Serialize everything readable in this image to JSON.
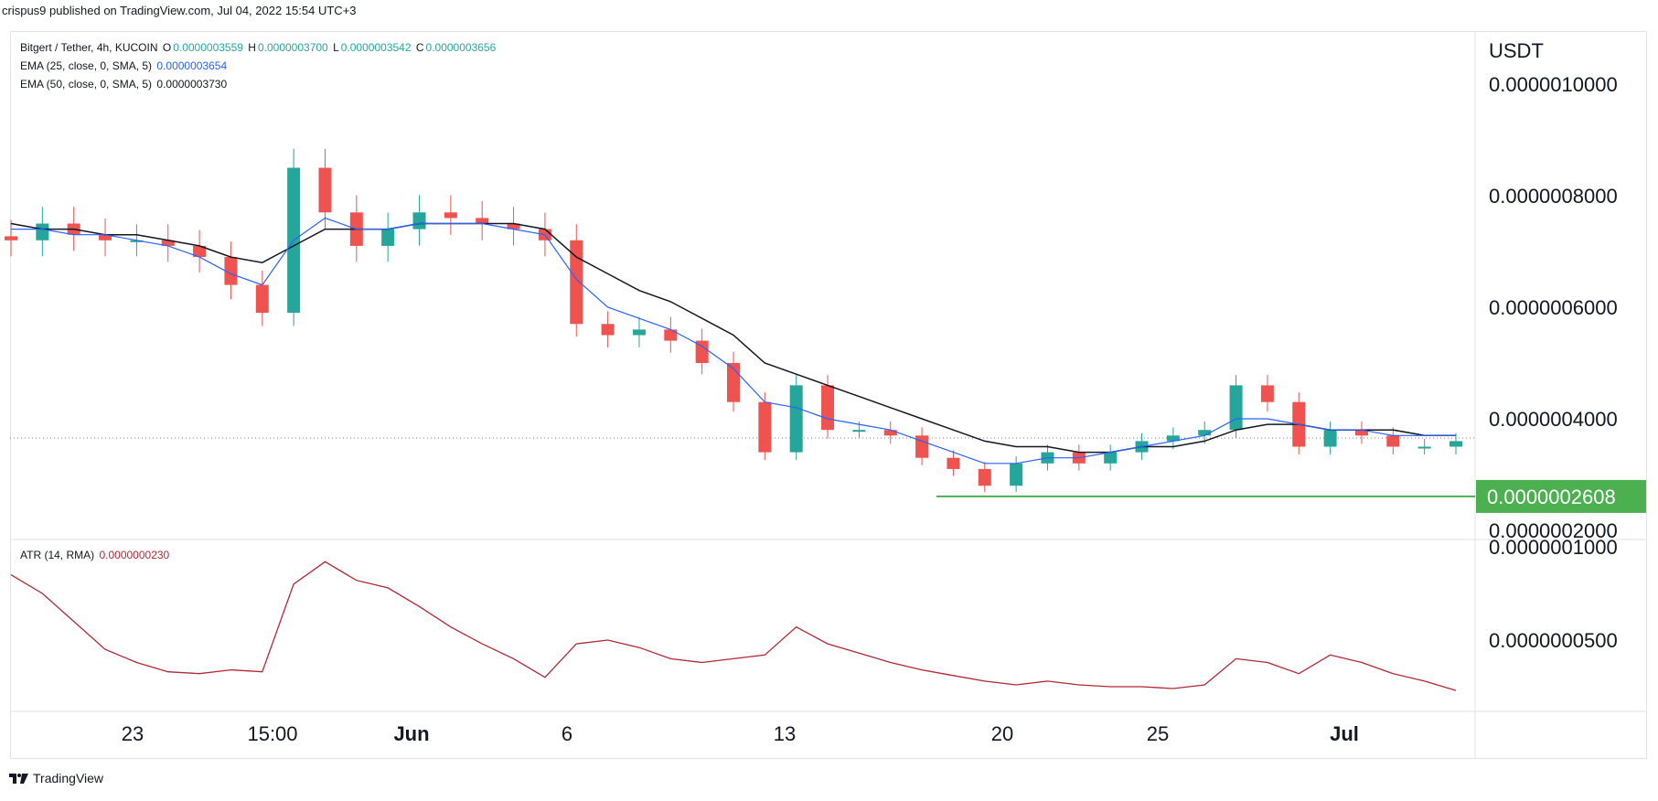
{
  "header": {
    "author": "crispus9",
    "published_text": "published on TradingView.com, Jul 04, 2022 15:54 UTC+3"
  },
  "legend": {
    "symbol": "Bitgert / Tether, 4h, KUCOIN",
    "o_label": "O",
    "o_value": "0.0000003559",
    "h_label": "H",
    "h_value": "0.0000003700",
    "l_label": "L",
    "l_value": "0.0000003542",
    "c_label": "C",
    "c_value": "0.0000003656",
    "ema25_label": "EMA (25, close, 0, SMA, 5)",
    "ema25_value": "0.0000003654",
    "ema50_label": "EMA (50, close, 0, SMA, 5)",
    "ema50_value": "0.0000003730",
    "atr_label": "ATR (14, RMA)",
    "atr_value": "0.0000000230"
  },
  "footer": {
    "brand": "TradingView"
  },
  "colors": {
    "up": "#26a69a",
    "down": "#ef5350",
    "ema25": "#2962ff",
    "ema50": "#131722",
    "atr": "#b22833",
    "support": "#4caf50",
    "grid": "#e0e3eb",
    "price_line": "#26a69a"
  },
  "chart_data": {
    "type": "candlestick",
    "symbol": "Bitgert / Tether",
    "interval": "4h",
    "exchange": "KUCOIN",
    "y_unit": "USDT",
    "price_ticks": [
      "0.0000010000",
      "0.0000008000",
      "0.0000006000",
      "0.0000004000",
      "0.0000002000"
    ],
    "atr_ticks": [
      "0.0000001000",
      "0.0000000500"
    ],
    "x_ticks": [
      "23",
      "15:00",
      "Jun",
      "6",
      "13",
      "20",
      "25",
      "Jul"
    ],
    "x_tick_dates": [
      "2022-05-23",
      "2022-05-29 15:00",
      "2022-06-01",
      "2022-06-06",
      "2022-06-13",
      "2022-06-20",
      "2022-06-25",
      "2022-07-01"
    ],
    "support_level": 2.608e-07,
    "support_label": "0.0000002608",
    "last_close": 3.656e-07,
    "x": [
      "2022-05-19",
      "2022-05-20",
      "2022-05-21",
      "2022-05-22",
      "2022-05-23",
      "2022-05-24",
      "2022-05-25",
      "2022-05-26",
      "2022-05-27",
      "2022-05-28",
      "2022-05-29",
      "2022-05-30",
      "2022-05-31",
      "2022-06-01",
      "2022-06-02",
      "2022-06-03",
      "2022-06-04",
      "2022-06-05",
      "2022-06-06",
      "2022-06-07",
      "2022-06-08",
      "2022-06-09",
      "2022-06-10",
      "2022-06-11",
      "2022-06-12",
      "2022-06-13",
      "2022-06-14",
      "2022-06-15",
      "2022-06-16",
      "2022-06-17",
      "2022-06-18",
      "2022-06-19",
      "2022-06-20",
      "2022-06-21",
      "2022-06-22",
      "2022-06-23",
      "2022-06-24",
      "2022-06-25",
      "2022-06-26",
      "2022-06-27",
      "2022-06-28",
      "2022-06-29",
      "2022-06-30",
      "2022-07-01",
      "2022-07-02",
      "2022-07-03",
      "2022-07-04"
    ],
    "close": [
      7.2e-07,
      7.5e-07,
      7.3e-07,
      7.2e-07,
      7.2e-07,
      7.1e-07,
      6.9e-07,
      6.4e-07,
      5.9e-07,
      8.5e-07,
      7.7e-07,
      7.1e-07,
      7.4e-07,
      7.7e-07,
      7.6e-07,
      7.5e-07,
      7.4e-07,
      7.2e-07,
      5.7e-07,
      5.5e-07,
      5.6e-07,
      5.4e-07,
      5e-07,
      4.3e-07,
      3.4e-07,
      4.6e-07,
      3.8e-07,
      3.8e-07,
      3.7e-07,
      3.3e-07,
      3.1e-07,
      2.8e-07,
      3.2e-07,
      3.4e-07,
      3.2e-07,
      3.4e-07,
      3.6e-07,
      3.7e-07,
      3.8e-07,
      4.6e-07,
      4.3e-07,
      3.5e-07,
      3.8e-07,
      3.7e-07,
      3.5e-07,
      3.5e-07,
      3.6e-07
    ],
    "ema25": [
      7.4e-07,
      7.4e-07,
      7.3e-07,
      7.3e-07,
      7.2e-07,
      7.1e-07,
      6.9e-07,
      6.6e-07,
      6.4e-07,
      7.2e-07,
      7.6e-07,
      7.4e-07,
      7.4e-07,
      7.5e-07,
      7.5e-07,
      7.5e-07,
      7.4e-07,
      7.3e-07,
      6.5e-07,
      6e-07,
      5.8e-07,
      5.6e-07,
      5.3e-07,
      4.9e-07,
      4.3e-07,
      4.2e-07,
      4e-07,
      3.9e-07,
      3.8e-07,
      3.6e-07,
      3.4e-07,
      3.2e-07,
      3.2e-07,
      3.3e-07,
      3.3e-07,
      3.4e-07,
      3.5e-07,
      3.6e-07,
      3.7e-07,
      4e-07,
      4e-07,
      3.9e-07,
      3.8e-07,
      3.8e-07,
      3.7e-07,
      3.7e-07,
      3.7e-07
    ],
    "ema50": [
      7.5e-07,
      7.4e-07,
      7.4e-07,
      7.3e-07,
      7.3e-07,
      7.2e-07,
      7.1e-07,
      6.9e-07,
      6.8e-07,
      7.1e-07,
      7.4e-07,
      7.4e-07,
      7.4e-07,
      7.5e-07,
      7.5e-07,
      7.5e-07,
      7.5e-07,
      7.4e-07,
      6.9e-07,
      6.6e-07,
      6.3e-07,
      6.1e-07,
      5.8e-07,
      5.5e-07,
      5e-07,
      4.8e-07,
      4.6e-07,
      4.4e-07,
      4.2e-07,
      4e-07,
      3.8e-07,
      3.6e-07,
      3.5e-07,
      3.5e-07,
      3.4e-07,
      3.4e-07,
      3.5e-07,
      3.5e-07,
      3.6e-07,
      3.8e-07,
      3.9e-07,
      3.9e-07,
      3.8e-07,
      3.8e-07,
      3.8e-07,
      3.7e-07,
      3.7e-07
    ],
    "atr": [
      8.5e-08,
      7.5e-08,
      6e-08,
      4.5e-08,
      3.8e-08,
      3.3e-08,
      3.2e-08,
      3.4e-08,
      3.3e-08,
      8e-08,
      9.2e-08,
      8.2e-08,
      7.8e-08,
      6.8e-08,
      5.7e-08,
      4.8e-08,
      4e-08,
      3e-08,
      4.8e-08,
      5e-08,
      4.6e-08,
      4e-08,
      3.8e-08,
      4e-08,
      4.2e-08,
      5.7e-08,
      4.8e-08,
      4.3e-08,
      3.8e-08,
      3.4e-08,
      3.1e-08,
      2.8e-08,
      2.6e-08,
      2.8e-08,
      2.6e-08,
      2.5e-08,
      2.5e-08,
      2.4e-08,
      2.6e-08,
      4e-08,
      3.8e-08,
      3.2e-08,
      4.2e-08,
      3.8e-08,
      3.2e-08,
      2.8e-08,
      2.3e-08
    ]
  }
}
